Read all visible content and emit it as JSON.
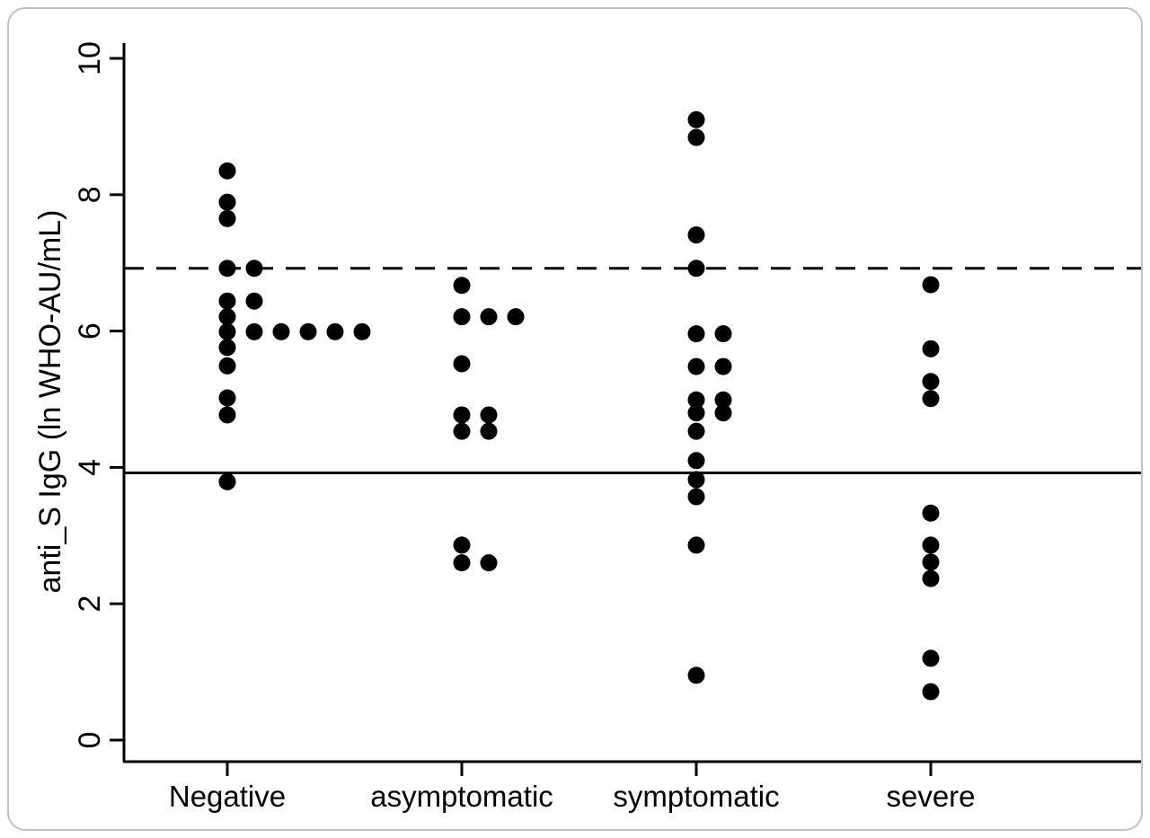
{
  "figure": {
    "background": "#ffffff",
    "border_color": "#c2c2c2"
  },
  "chart_data": {
    "type": "scatter",
    "subtype": "stacked-strip-dot-plot",
    "title": "",
    "xlabel": "",
    "ylabel": "anti_S IgG (ln WHO-AU/mL)",
    "ylim": [
      0,
      10
    ],
    "yticks": [
      0,
      2,
      4,
      6,
      8,
      10
    ],
    "categories": [
      "Negative",
      "asymptomatic",
      "symptomatic",
      "severe"
    ],
    "grid": false,
    "legend": false,
    "marker_color": "#000000",
    "axis_color": "#000000",
    "reference_lines": [
      {
        "name": "upper-threshold-dashed-line",
        "value": 6.92,
        "style": "dashed"
      },
      {
        "name": "lower-threshold-solid-line",
        "value": 3.92,
        "style": "solid"
      }
    ],
    "series": [
      {
        "name": "Negative",
        "values": [
          8.35,
          7.89,
          7.65,
          6.92,
          6.92,
          6.44,
          6.44,
          6.21,
          5.99,
          5.99,
          5.99,
          5.99,
          5.99,
          5.99,
          5.76,
          5.49,
          5.02,
          4.77,
          3.79
        ]
      },
      {
        "name": "asymptomatic",
        "values": [
          6.67,
          6.21,
          6.21,
          6.21,
          5.52,
          4.77,
          4.77,
          4.53,
          4.53,
          2.86,
          2.6,
          2.6
        ]
      },
      {
        "name": "symptomatic",
        "values": [
          9.1,
          8.84,
          7.41,
          6.92,
          5.96,
          5.96,
          5.48,
          5.48,
          4.99,
          4.99,
          4.8,
          4.8,
          4.53,
          4.1,
          3.82,
          3.57,
          2.86,
          0.95
        ]
      },
      {
        "name": "severe",
        "values": [
          6.68,
          5.74,
          5.26,
          5.01,
          3.33,
          2.86,
          2.61,
          2.37,
          1.2,
          0.71
        ]
      }
    ]
  }
}
